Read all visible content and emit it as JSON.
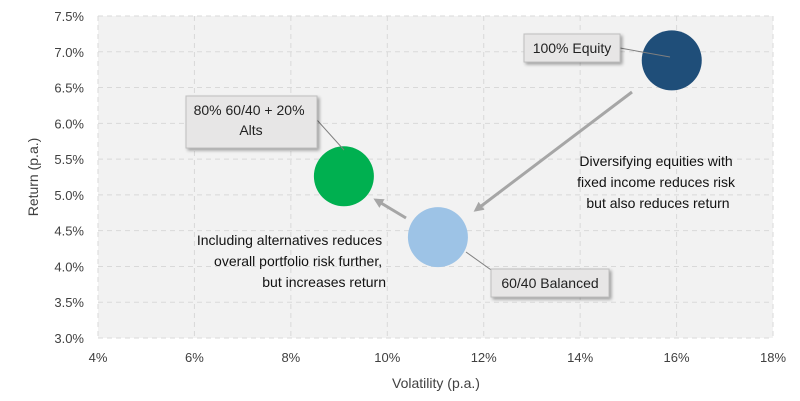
{
  "chart_data": {
    "type": "scatter",
    "title": "",
    "xlabel": "Volatility (p.a.)",
    "ylabel": "Return (p.a.)",
    "xlim": [
      0.04,
      0.18
    ],
    "ylim": [
      0.03,
      0.075
    ],
    "x_ticks": [
      "4%",
      "6%",
      "8%",
      "10%",
      "12%",
      "14%",
      "16%",
      "18%"
    ],
    "y_ticks": [
      "3.0%",
      "3.5%",
      "4.0%",
      "4.5%",
      "5.0%",
      "5.5%",
      "6.0%",
      "6.5%",
      "7.0%",
      "7.5%"
    ],
    "grid": true,
    "points": [
      {
        "label": "100% Equity",
        "x": 0.159,
        "y": 0.0688,
        "color": "#1f4e79"
      },
      {
        "label": "60/40 Balanced",
        "x": 0.1105,
        "y": 0.0441,
        "color": "#9dc3e6"
      },
      {
        "label": "80% 60/40 + 20% Alts",
        "x": 0.091,
        "y": 0.0526,
        "color": "#00b050"
      }
    ],
    "annotations": [
      {
        "lines": [
          "Diversifying equities with",
          "fixed income reduces risk",
          "but also reduces return"
        ]
      },
      {
        "lines": [
          "Including alternatives reduces",
          "overall portfolio risk further,",
          "but increases return"
        ]
      }
    ],
    "colors": {
      "plot_bg": "#f2f2f2",
      "grid": "#d9d9d9",
      "arrow": "#a6a6a6",
      "callout_bg": "#e7e6e6"
    }
  }
}
